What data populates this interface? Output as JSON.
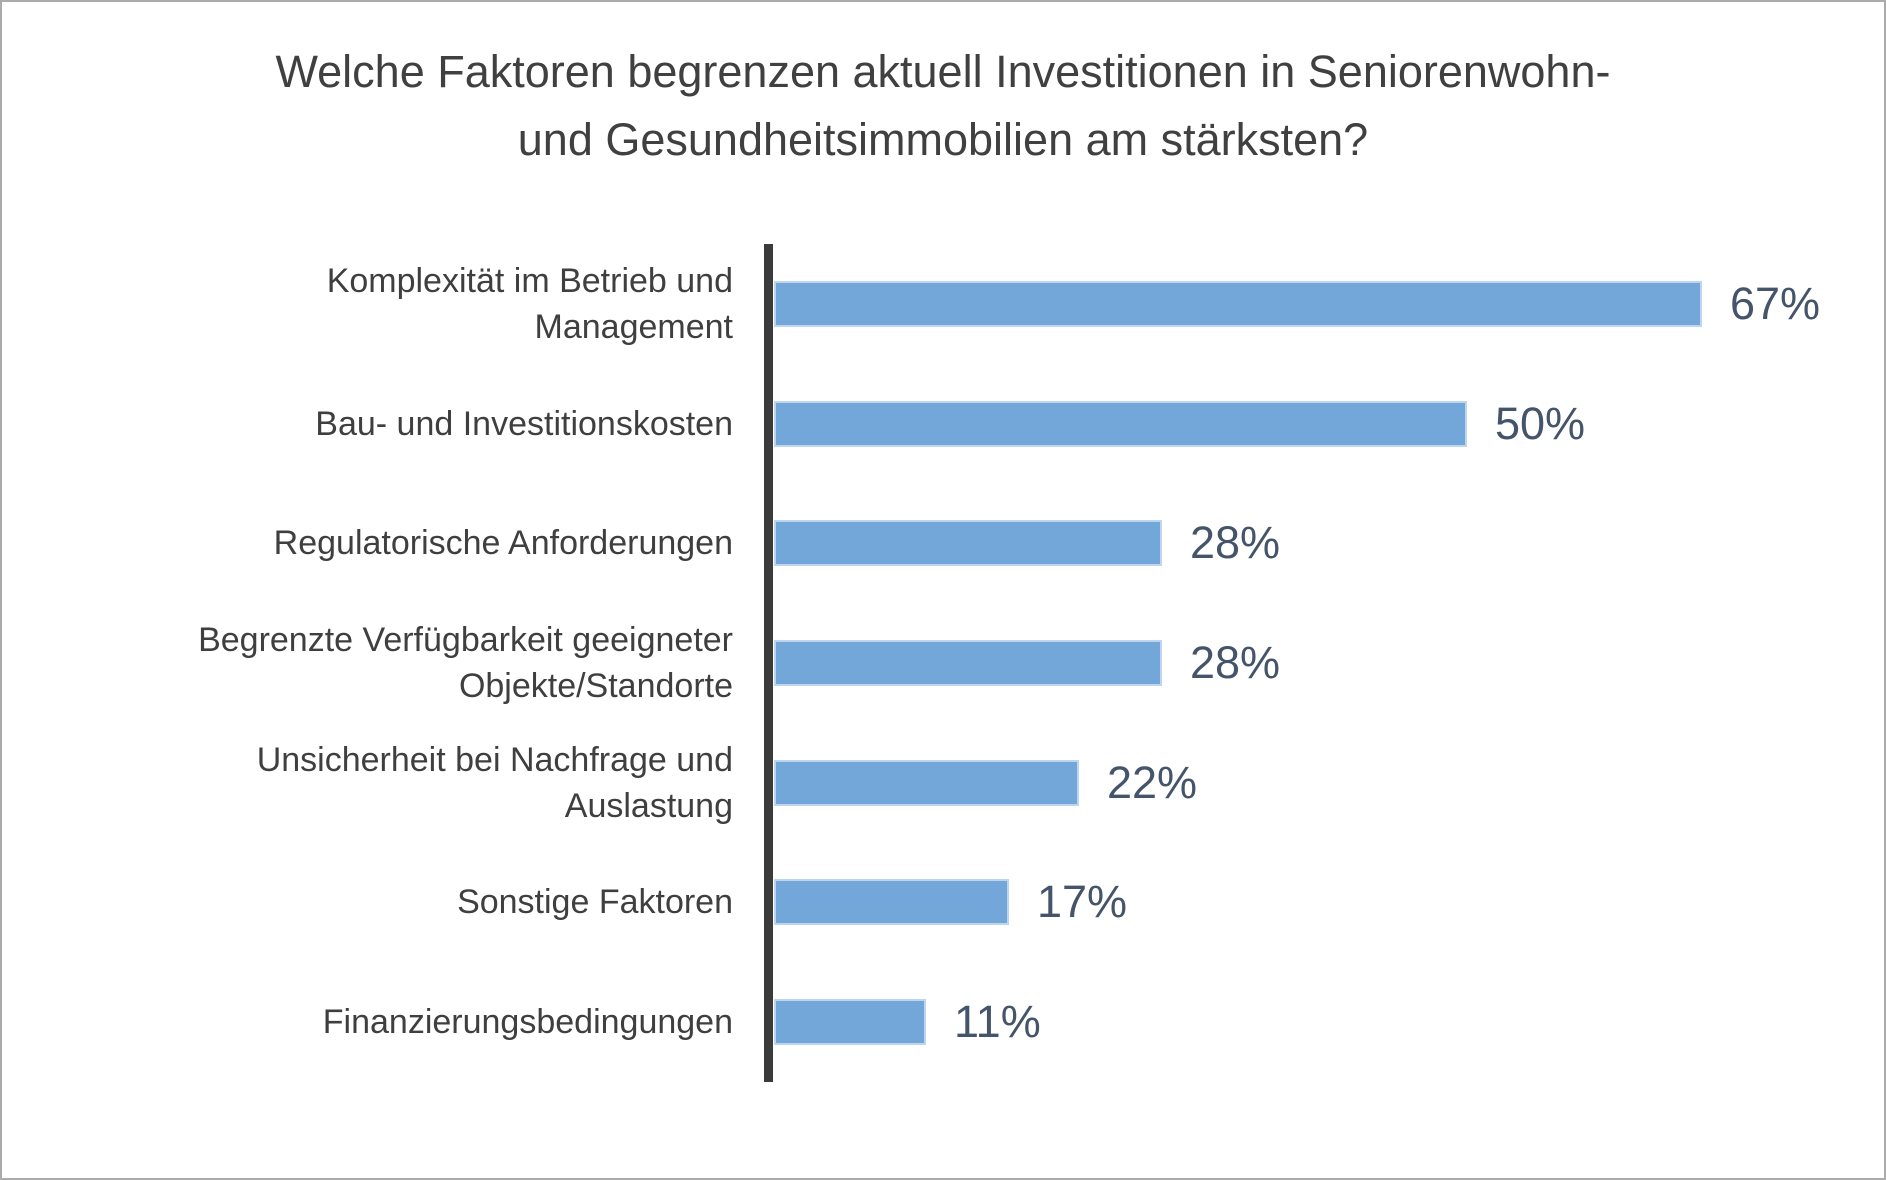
{
  "title": {
    "line1": "Welche Faktoren begrenzen aktuell Investitionen in Seniorenwohn-",
    "line2": "und Gesundheitsimmobilien am stärksten?"
  },
  "chart_data": {
    "type": "bar",
    "orientation": "horizontal",
    "title": "Welche Faktoren begrenzen aktuell Investitionen in Seniorenwohn- und Gesundheitsimmobilien am stärksten?",
    "categories": [
      "Komplexität im Betrieb und Management",
      "Bau- und Investitionskosten",
      "Regulatorische Anforderungen",
      "Begrenzte Verfügbarkeit geeigneter Objekte/Standorte",
      "Unsicherheit bei Nachfrage und Auslastung",
      "Sonstige Faktoren",
      "Finanzierungsbedingungen"
    ],
    "categories_wrapped": [
      [
        "Komplexität im Betrieb und",
        "Management"
      ],
      [
        "Bau- und Investitionskosten"
      ],
      [
        "Regulatorische Anforderungen"
      ],
      [
        "Begrenzte Verfügbarkeit geeigneter",
        "Objekte/Standorte"
      ],
      [
        "Unsicherheit bei Nachfrage und",
        "Auslastung"
      ],
      [
        "Sonstige Faktoren"
      ],
      [
        "Finanzierungsbedingungen"
      ]
    ],
    "values": [
      67,
      50,
      28,
      28,
      22,
      17,
      11
    ],
    "value_labels": [
      "67%",
      "50%",
      "28%",
      "28%",
      "22%",
      "17%",
      "11%"
    ],
    "xlabel": "",
    "ylabel": "",
    "xlim": [
      0,
      72
    ],
    "grid": false,
    "legend": false,
    "bar_color": "#73a7da",
    "bar_border_color": "#bed5ee",
    "value_label_color": "#44546a",
    "category_label_color": "#3f3f3f",
    "axis_color": "#3b3b3b",
    "title_color": "#404040"
  }
}
